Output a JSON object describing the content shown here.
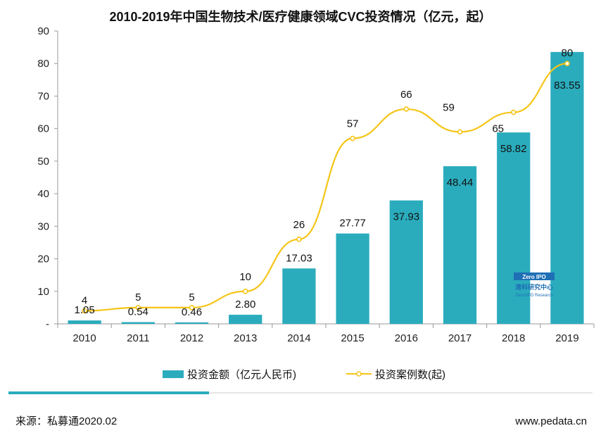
{
  "chart_data": {
    "type": "bar",
    "title": "2010-2019年中国生物技术/医疗健康领域CVC投资情况（亿元，起）",
    "categories": [
      "2010",
      "2011",
      "2012",
      "2013",
      "2014",
      "2015",
      "2016",
      "2017",
      "2018",
      "2019"
    ],
    "series": [
      {
        "name": "投资金额（亿元人民币)",
        "type": "bar",
        "color": "#2aacbd",
        "values": [
          1.05,
          0.54,
          0.46,
          2.8,
          17.03,
          27.77,
          37.93,
          48.44,
          58.82,
          83.55
        ],
        "labels": [
          "1.05",
          "0.54",
          "0.46",
          "2.80",
          "17.03",
          "27.77",
          "37.93",
          "48.44",
          "58.82",
          "83.55"
        ]
      },
      {
        "name": "投资案例数(起)",
        "type": "line",
        "color": "#f5c518",
        "values": [
          4,
          5,
          5,
          10,
          26,
          57,
          66,
          59,
          65,
          80
        ],
        "labels": [
          "4",
          "5",
          "5",
          "10",
          "26",
          "57",
          "66",
          "59",
          "65",
          "80"
        ]
      }
    ],
    "ylim": [
      0,
      90
    ],
    "yticks": [
      "-",
      "10",
      "20",
      "30",
      "40",
      "50",
      "60",
      "70",
      "80",
      "90"
    ],
    "grid": false,
    "legend_position": "bottom"
  },
  "footer": {
    "source": "来源：私募通2020.02",
    "website": "www.pedata.cn"
  },
  "watermark": {
    "logo_text": "Zero IPO",
    "name": "清科研究中心",
    "name_en": "Zero2IPO Research"
  },
  "colors": {
    "bar": "#2aacbd",
    "line": "#f5c518",
    "divider": "#2aacbd"
  }
}
